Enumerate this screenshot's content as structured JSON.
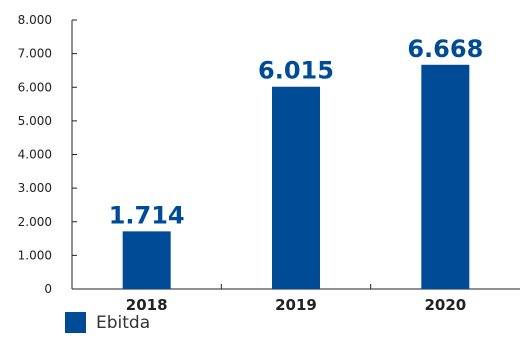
{
  "chart_data": {
    "type": "bar",
    "categories": [
      "2018",
      "2019",
      "2020"
    ],
    "series": [
      {
        "name": "Ebitda",
        "values": [
          1714,
          6015,
          6668
        ],
        "value_labels": [
          "1.714",
          "6.015",
          "6.668"
        ]
      }
    ],
    "ylim": [
      0,
      8000
    ],
    "y_ticks": [
      0,
      1000,
      2000,
      3000,
      4000,
      5000,
      6000,
      7000,
      8000
    ],
    "y_tick_labels": [
      "0",
      "1.000",
      "2.000",
      "3.000",
      "4.000",
      "5.000",
      "6.000",
      "7.000",
      "8.000"
    ],
    "grid": false,
    "legend_position": "bottom-left",
    "colors": {
      "bar": "#004b96",
      "axis": "#222222",
      "tick_text": "#222222",
      "value_label": "#004b96"
    }
  },
  "legend": {
    "label": "Ebitda"
  }
}
